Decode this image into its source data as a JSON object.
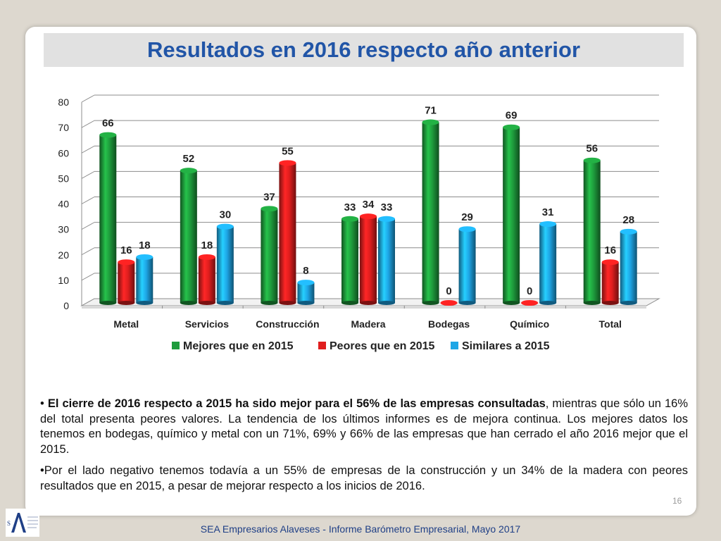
{
  "title": "Resultados en 2016 respecto año anterior",
  "chart_data": {
    "type": "bar",
    "categories": [
      "Metal",
      "Servicios",
      "Construcción",
      "Madera",
      "Bodegas",
      "Químico",
      "Total"
    ],
    "series": [
      {
        "name": "Mejores que en 2015",
        "values": [
          66,
          52,
          37,
          33,
          71,
          69,
          56
        ],
        "color": "#1e9b3c"
      },
      {
        "name": "Peores que en 2015",
        "values": [
          16,
          18,
          55,
          34,
          0,
          0,
          16
        ],
        "color": "#e01e1e"
      },
      {
        "name": "Similares a 2015",
        "values": [
          18,
          30,
          8,
          33,
          29,
          31,
          28
        ],
        "color": "#1ea6e6"
      }
    ],
    "ylim": [
      0,
      80
    ],
    "yticks": [
      0,
      10,
      20,
      30,
      40,
      50,
      60,
      70,
      80
    ],
    "grid": true,
    "legend": "bottom",
    "title": "",
    "xlabel": "",
    "ylabel": ""
  },
  "paragraphs": [
    {
      "bullet": "•",
      "bold": "El cierre de 2016 respecto a 2015 ha sido mejor para el 56% de las empresas consultadas",
      "rest": ", mientras que sólo un 16% del total presenta peores valores. La tendencia de los últimos informes es de mejora continua.  Los mejores datos los tenemos en bodegas, químico y metal con un 71%, 69% y 66% de las empresas que han cerrado el año 2016 mejor que el 2015."
    },
    {
      "bullet": "•",
      "bold": "",
      "rest": "Por el lado negativo tenemos todavía a un 55% de empresas de la construcción y un 34% de la madera con peores resultados que en 2015, a pesar de mejorar respecto a los  inicios de 2016."
    }
  ],
  "page_number": "16",
  "footer": "SEA Empresarios Alaveses  -  Informe Barómetro Empresarial, Mayo 2017",
  "logo_text": "SEA"
}
